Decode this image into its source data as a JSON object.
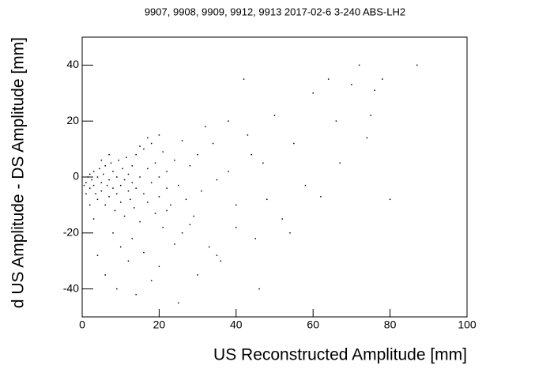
{
  "chart_data": {
    "type": "scatter",
    "title": "9907, 9908, 9909, 9912, 9913 2017-02-6 3-240 ABS-LH2",
    "x_label": "US Reconstructed Amplitude [mm]",
    "y_label": "d US Amplitude - DS Amplitude [mm]",
    "color": "#000000",
    "xlim": [
      0,
      100
    ],
    "xticks": [
      0,
      20,
      40,
      60,
      80,
      100
    ],
    "ylim": [
      -50,
      50
    ],
    "yticks": [
      -40,
      -20,
      0,
      20,
      40
    ],
    "x": [
      1,
      1.5,
      2,
      2,
      2.5,
      3,
      3,
      3.5,
      4,
      4,
      4.5,
      5,
      5,
      5.5,
      6,
      6,
      6.5,
      7,
      7,
      7.5,
      8,
      8,
      8.5,
      9,
      9,
      9.5,
      10,
      10,
      10.5,
      11,
      11,
      11.5,
      12,
      12,
      12.5,
      13,
      13,
      13.5,
      14,
      14,
      15,
      15,
      16,
      16,
      17,
      17,
      18,
      18,
      19,
      19,
      20,
      20,
      21,
      21,
      22,
      22,
      23,
      24,
      25,
      26,
      26,
      27,
      28,
      29,
      30,
      31,
      32,
      33,
      34,
      35,
      36,
      38,
      40,
      42,
      43,
      45,
      47,
      50,
      52,
      55,
      58,
      60,
      62,
      64,
      66,
      67,
      70,
      72,
      74,
      75,
      76,
      78,
      80,
      87,
      8,
      10,
      12,
      6,
      9,
      14,
      18,
      4,
      13,
      16,
      20,
      25,
      30,
      46,
      3,
      2,
      5,
      7,
      1,
      0.5,
      24,
      28,
      35,
      40,
      44,
      48,
      54,
      38,
      20,
      22,
      17,
      15
    ],
    "values": [
      -2,
      0,
      -4,
      1,
      -1,
      -3,
      2,
      -6,
      0,
      -8,
      3,
      -2,
      -5,
      1,
      -10,
      4,
      -3,
      -1,
      -7,
      5,
      -4,
      2,
      -12,
      0,
      -6,
      6,
      -3,
      -9,
      3,
      -1,
      -14,
      7,
      -5,
      1,
      -8,
      4,
      -2,
      -11,
      8,
      -4,
      0,
      -16,
      10,
      -6,
      3,
      -9,
      -2,
      12,
      -13,
      5,
      0,
      -7,
      9,
      -18,
      -4,
      2,
      -10,
      6,
      -3,
      13,
      -20,
      -8,
      4,
      -14,
      8,
      -5,
      18,
      -25,
      12,
      -1,
      -30,
      20,
      -10,
      35,
      15,
      -22,
      5,
      22,
      -15,
      12,
      -3,
      30,
      -7,
      35,
      20,
      5,
      33,
      40,
      14,
      22,
      31,
      35,
      -8,
      40,
      -20,
      -25,
      -30,
      -35,
      -40,
      -42,
      -37,
      -28,
      -22,
      -27,
      -32,
      -45,
      -35,
      -40,
      -15,
      -10,
      6,
      8,
      -6,
      -3,
      -24,
      -17,
      -28,
      -18,
      8,
      -8,
      -20,
      2,
      15,
      -12,
      14,
      11
    ]
  }
}
